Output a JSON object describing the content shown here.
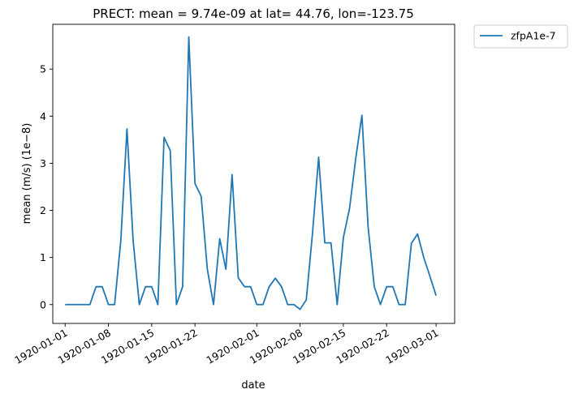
{
  "chart_data": {
    "type": "line",
    "title": "PRECT: mean =  9.74e-09 at lat= 44.76, lon=-123.75",
    "xlabel": "date",
    "ylabel": "mean (m/s) (1e−8)",
    "ylim": [
      -0.4,
      5.95
    ],
    "yticks": [
      0,
      1,
      2,
      3,
      4,
      5
    ],
    "xlim": [
      "1919-12-30",
      "1920-03-04"
    ],
    "xticks": [
      "1920-01-01",
      "1920-01-08",
      "1920-01-15",
      "1920-01-22",
      "1920-02-01",
      "1920-02-08",
      "1920-02-15",
      "1920-02-22",
      "1920-03-01"
    ],
    "grid": false,
    "legend_position": "outside-top-right",
    "colors": {
      "series": "#1f77b4",
      "axes": "#000000"
    },
    "series": [
      {
        "name": "zfpA1e-7",
        "x": [
          "1920-01-01",
          "1920-01-02",
          "1920-01-03",
          "1920-01-04",
          "1920-01-05",
          "1920-01-06",
          "1920-01-07",
          "1920-01-08",
          "1920-01-09",
          "1920-01-10",
          "1920-01-11",
          "1920-01-12",
          "1920-01-13",
          "1920-01-14",
          "1920-01-15",
          "1920-01-16",
          "1920-01-17",
          "1920-01-18",
          "1920-01-19",
          "1920-01-20",
          "1920-01-21",
          "1920-01-22",
          "1920-01-23",
          "1920-01-24",
          "1920-01-25",
          "1920-01-26",
          "1920-01-27",
          "1920-01-28",
          "1920-01-29",
          "1920-01-30",
          "1920-01-31",
          "1920-02-01",
          "1920-02-02",
          "1920-02-03",
          "1920-02-04",
          "1920-02-05",
          "1920-02-06",
          "1920-02-07",
          "1920-02-08",
          "1920-02-09",
          "1920-02-10",
          "1920-02-11",
          "1920-02-12",
          "1920-02-13",
          "1920-02-14",
          "1920-02-15",
          "1920-02-16",
          "1920-02-17",
          "1920-02-18",
          "1920-02-19",
          "1920-02-20",
          "1920-02-21",
          "1920-02-22",
          "1920-02-23",
          "1920-02-24",
          "1920-02-25",
          "1920-02-26",
          "1920-02-27",
          "1920-02-28",
          "1920-02-29",
          "1920-03-01"
        ],
        "y": [
          0.0,
          0.0,
          0.0,
          0.0,
          0.0,
          0.38,
          0.38,
          0.0,
          0.0,
          1.35,
          3.73,
          1.35,
          0.0,
          0.38,
          0.38,
          0.0,
          3.55,
          3.27,
          0.0,
          0.38,
          5.68,
          2.57,
          2.3,
          0.75,
          0.0,
          1.4,
          0.75,
          2.76,
          0.57,
          0.38,
          0.38,
          0.0,
          0.0,
          0.38,
          0.56,
          0.38,
          0.0,
          0.0,
          -0.1,
          0.1,
          1.5,
          3.13,
          1.31,
          1.31,
          0.0,
          1.42,
          2.04,
          3.1,
          4.02,
          1.65,
          0.38,
          0.0,
          0.38,
          0.38,
          0.0,
          0.0,
          1.3,
          1.5,
          1.0,
          0.6,
          0.19
        ]
      }
    ]
  }
}
